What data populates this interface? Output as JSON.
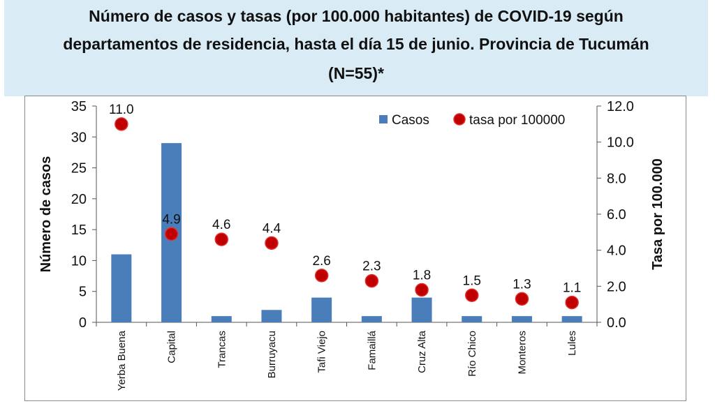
{
  "title": {
    "lines": [
      "Número de casos y tasas (por 100.000 habitantes) de COVID-19 según",
      "departamentos de residencia, hasta el día 15 de junio. Provincia de Tucumán",
      "(N=55)*"
    ]
  },
  "chart_data": {
    "type": "bar",
    "categories": [
      "Yerba Buena",
      "Capital",
      "Trancas",
      "Burruyacu",
      "Tafi Viejo",
      "Famaillá",
      "Cruz Alta",
      "Río Chico",
      "Monteros",
      "Lules"
    ],
    "series": [
      {
        "name": "Casos",
        "type": "bar",
        "axis": "left",
        "color": "#4a7ebb",
        "values": [
          11,
          29,
          1,
          2,
          4,
          1,
          4,
          1,
          1,
          1
        ]
      },
      {
        "name": "tasa por 100000",
        "type": "scatter",
        "axis": "right",
        "color": "#c00000",
        "values": [
          11.0,
          4.9,
          4.6,
          4.4,
          2.6,
          2.3,
          1.8,
          1.5,
          1.3,
          1.1
        ],
        "labels": [
          "11.0",
          "4.9",
          "4.6",
          "4.4",
          "2.6",
          "2.3",
          "1.8",
          "1.5",
          "1.3",
          "1.1"
        ]
      }
    ],
    "ylabel": "Número de casos",
    "ylabel_right": "Tasa por 100.000",
    "ylim": [
      0,
      35
    ],
    "ylim_right": [
      0,
      12
    ],
    "yticks": [
      "0",
      "5",
      "10",
      "15",
      "20",
      "25",
      "30",
      "35"
    ],
    "yticks_right": [
      "0.0",
      "2.0",
      "4.0",
      "6.0",
      "8.0",
      "10.0",
      "12.0"
    ],
    "grid": false,
    "legend_position": "top-right"
  }
}
